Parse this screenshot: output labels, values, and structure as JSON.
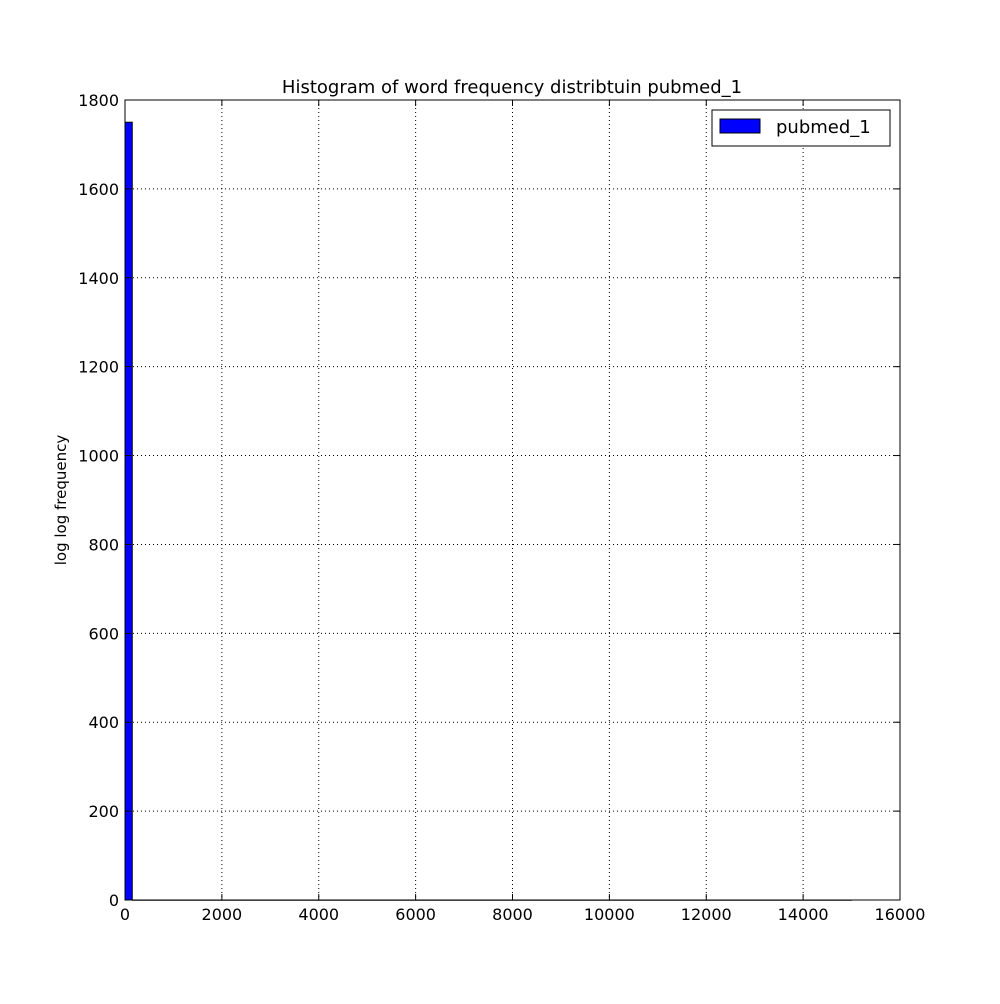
{
  "chart_data": {
    "type": "bar",
    "title": "Histogram of word frequency distribtuin pubmed_1",
    "xlabel": "",
    "ylabel": "log log frequency",
    "xlim": [
      0,
      16000
    ],
    "ylim": [
      0,
      1800
    ],
    "x_ticks": [
      "0",
      "2000",
      "4000",
      "6000",
      "8000",
      "10000",
      "12000",
      "14000",
      "16000"
    ],
    "y_ticks": [
      "0",
      "200",
      "400",
      "600",
      "800",
      "1000",
      "1200",
      "1400",
      "1600",
      "1800"
    ],
    "grid": true,
    "legend_position": "top-right",
    "series": [
      {
        "name": "pubmed_1",
        "color": "#0000ff",
        "bins": [
          {
            "x0": 0,
            "x1": 150,
            "value": 1750
          },
          {
            "x0": 150,
            "x1": 15000,
            "value": 0
          }
        ]
      }
    ]
  }
}
